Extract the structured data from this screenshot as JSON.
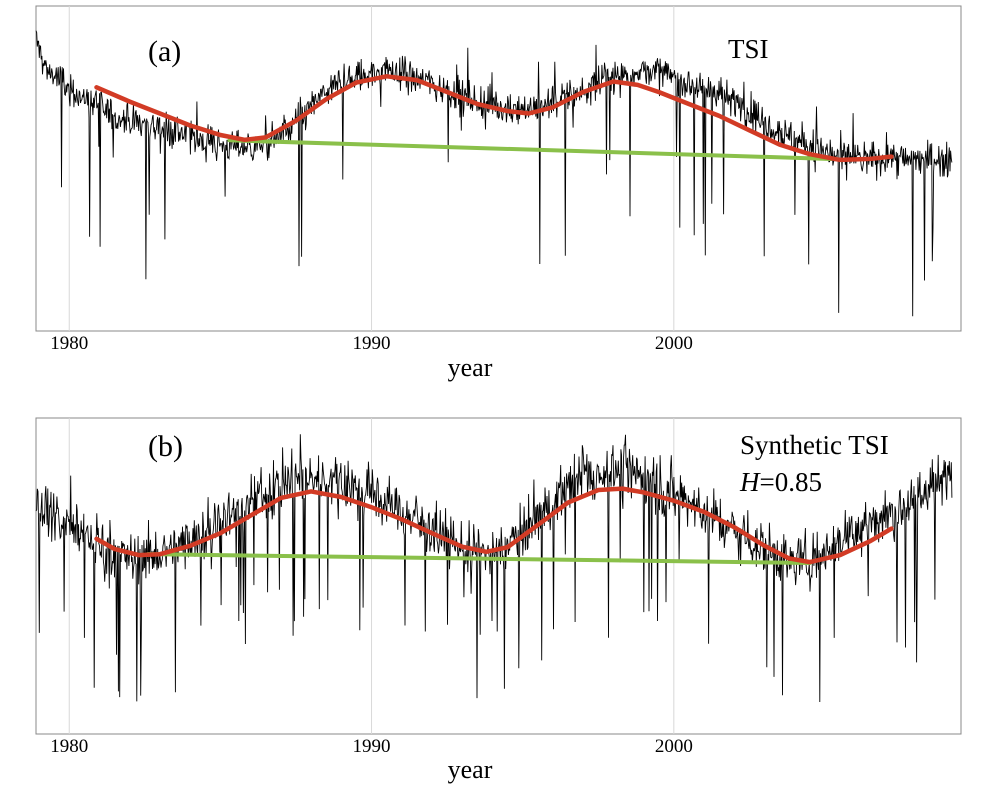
{
  "chart_data": [
    {
      "type": "line",
      "panel_label": "(a)",
      "annotation": "TSI",
      "annotation_param": "",
      "annotation_value": "",
      "xlabel": "year",
      "ylabel": "",
      "xlim": [
        1978.9,
        2009.5
      ],
      "ylim": [
        -4.2,
        2.6
      ],
      "xticks": [
        1980,
        1990,
        2000
      ],
      "xtick_labels": [
        "1980",
        "1990",
        "2000"
      ],
      "grid": "vertical",
      "colors": {
        "data": "#000000",
        "smooth": "#d23b25",
        "baseline": "#8ac04a"
      },
      "series": [
        {
          "values": [
            [
              1978.9,
              1.9
            ],
            [
              1979.2,
              1.3
            ],
            [
              1979.6,
              1.1
            ],
            [
              1980.0,
              0.85
            ],
            [
              1980.5,
              0.65
            ],
            [
              1981.0,
              0.5
            ],
            [
              1981.5,
              0.3
            ],
            [
              1982.0,
              0.2
            ],
            [
              1982.5,
              0.15
            ],
            [
              1983.0,
              0.05
            ],
            [
              1983.5,
              0.0
            ],
            [
              1984.0,
              -0.15
            ],
            [
              1984.5,
              -0.2
            ],
            [
              1985.0,
              -0.3
            ],
            [
              1985.5,
              -0.3
            ],
            [
              1986.0,
              -0.35
            ],
            [
              1986.5,
              -0.3
            ],
            [
              1987.0,
              -0.1
            ],
            [
              1987.5,
              0.15
            ],
            [
              1988.0,
              0.5
            ],
            [
              1988.5,
              0.8
            ],
            [
              1989.0,
              1.0
            ],
            [
              1989.5,
              1.1
            ],
            [
              1990.0,
              1.2
            ],
            [
              1990.5,
              1.25
            ],
            [
              1991.0,
              1.2
            ],
            [
              1991.5,
              1.1
            ],
            [
              1992.0,
              1.0
            ],
            [
              1992.5,
              0.85
            ],
            [
              1993.0,
              0.7
            ],
            [
              1993.5,
              0.6
            ],
            [
              1994.0,
              0.55
            ],
            [
              1994.5,
              0.45
            ],
            [
              1995.0,
              0.45
            ],
            [
              1995.5,
              0.5
            ],
            [
              1996.0,
              0.6
            ],
            [
              1996.5,
              0.7
            ],
            [
              1997.0,
              0.8
            ],
            [
              1997.5,
              1.0
            ],
            [
              1998.0,
              1.1
            ],
            [
              1998.5,
              1.2
            ],
            [
              1999.0,
              1.25
            ],
            [
              1999.5,
              1.2
            ],
            [
              2000.0,
              1.1
            ],
            [
              2000.5,
              1.0
            ],
            [
              2001.0,
              0.9
            ],
            [
              2001.5,
              0.75
            ],
            [
              2002.0,
              0.6
            ],
            [
              2002.5,
              0.4
            ],
            [
              2003.0,
              0.2
            ],
            [
              2003.5,
              0.0
            ],
            [
              2004.0,
              -0.2
            ],
            [
              2004.5,
              -0.3
            ],
            [
              2005.0,
              -0.45
            ],
            [
              2005.5,
              -0.55
            ],
            [
              2006.0,
              -0.6
            ],
            [
              2006.5,
              -0.6
            ],
            [
              2007.0,
              -0.55
            ],
            [
              2007.5,
              -0.6
            ],
            [
              2008.0,
              -0.6
            ],
            [
              2008.5,
              -0.6
            ],
            [
              2009.0,
              -0.6
            ],
            [
              2009.2,
              -0.55
            ]
          ]
        },
        {
          "values": [
            [
              1980.9,
              0.9
            ],
            [
              1982.0,
              0.6
            ],
            [
              1983.0,
              0.35
            ],
            [
              1984.0,
              0.1
            ],
            [
              1985.0,
              -0.1
            ],
            [
              1985.8,
              -0.2
            ],
            [
              1986.5,
              -0.15
            ],
            [
              1987.5,
              0.2
            ],
            [
              1988.5,
              0.65
            ],
            [
              1989.5,
              1.0
            ],
            [
              1990.5,
              1.13
            ],
            [
              1991.5,
              1.05
            ],
            [
              1992.5,
              0.8
            ],
            [
              1993.5,
              0.55
            ],
            [
              1994.5,
              0.4
            ],
            [
              1995.2,
              0.35
            ],
            [
              1996.0,
              0.48
            ],
            [
              1997.0,
              0.8
            ],
            [
              1998.0,
              1.02
            ],
            [
              1998.8,
              0.95
            ],
            [
              1999.5,
              0.8
            ],
            [
              2000.5,
              0.55
            ],
            [
              2001.5,
              0.3
            ],
            [
              2002.5,
              0.0
            ],
            [
              2003.5,
              -0.3
            ],
            [
              2004.5,
              -0.5
            ],
            [
              2005.5,
              -0.62
            ],
            [
              2006.5,
              -0.6
            ],
            [
              2007.2,
              -0.55
            ]
          ]
        },
        {
          "values": [
            [
              1985.3,
              -0.21
            ],
            [
              2005.2,
              -0.6
            ]
          ]
        }
      ]
    },
    {
      "type": "line",
      "panel_label": "(b)",
      "annotation": "Synthetic TSI",
      "annotation_param": "H",
      "annotation_value": "=0.85",
      "xlabel": "year",
      "ylabel": "",
      "xlim": [
        1978.9,
        2009.5
      ],
      "ylim": [
        -4.2,
        2.6
      ],
      "xticks": [
        1980,
        1990,
        2000
      ],
      "xtick_labels": [
        "1980",
        "1990",
        "2000"
      ],
      "grid": "vertical",
      "colors": {
        "data": "#000000",
        "smooth": "#d23b25",
        "baseline": "#8ac04a"
      },
      "series": [
        {
          "values": [
            [
              1978.9,
              0.9
            ],
            [
              1979.5,
              0.5
            ],
            [
              1980.0,
              0.3
            ],
            [
              1980.5,
              0.1
            ],
            [
              1981.0,
              -0.1
            ],
            [
              1981.5,
              -0.3
            ],
            [
              1982.0,
              -0.4
            ],
            [
              1982.5,
              -0.4
            ],
            [
              1983.0,
              -0.3
            ],
            [
              1983.5,
              -0.2
            ],
            [
              1984.0,
              0.0
            ],
            [
              1984.5,
              0.2
            ],
            [
              1985.0,
              0.4
            ],
            [
              1985.5,
              0.6
            ],
            [
              1986.0,
              0.8
            ],
            [
              1986.5,
              1.0
            ],
            [
              1987.0,
              1.2
            ],
            [
              1987.5,
              1.3
            ],
            [
              1988.0,
              1.3
            ],
            [
              1988.5,
              1.3
            ],
            [
              1989.0,
              1.2
            ],
            [
              1989.5,
              1.1
            ],
            [
              1990.0,
              1.0
            ],
            [
              1990.5,
              0.8
            ],
            [
              1991.0,
              0.6
            ],
            [
              1991.5,
              0.4
            ],
            [
              1992.0,
              0.2
            ],
            [
              1992.5,
              0.0
            ],
            [
              1993.0,
              -0.2
            ],
            [
              1993.5,
              -0.3
            ],
            [
              1994.0,
              -0.3
            ],
            [
              1994.5,
              -0.1
            ],
            [
              1995.0,
              0.2
            ],
            [
              1995.5,
              0.5
            ],
            [
              1996.0,
              0.8
            ],
            [
              1996.5,
              1.1
            ],
            [
              1997.0,
              1.3
            ],
            [
              1997.5,
              1.4
            ],
            [
              1998.0,
              1.5
            ],
            [
              1998.5,
              1.5
            ],
            [
              1999.0,
              1.4
            ],
            [
              1999.5,
              1.2
            ],
            [
              2000.0,
              1.0
            ],
            [
              2000.5,
              0.8
            ],
            [
              2001.0,
              0.6
            ],
            [
              2001.5,
              0.4
            ],
            [
              2002.0,
              0.2
            ],
            [
              2002.5,
              0.0
            ],
            [
              2003.0,
              -0.2
            ],
            [
              2003.5,
              -0.4
            ],
            [
              2004.0,
              -0.5
            ],
            [
              2004.5,
              -0.4
            ],
            [
              2005.0,
              -0.2
            ],
            [
              2005.5,
              0.0
            ],
            [
              2006.0,
              0.2
            ],
            [
              2006.5,
              0.3
            ],
            [
              2007.0,
              0.5
            ],
            [
              2007.5,
              0.7
            ],
            [
              2008.0,
              0.9
            ],
            [
              2008.5,
              1.1
            ],
            [
              2009.0,
              1.3
            ],
            [
              2009.2,
              1.4
            ]
          ]
        },
        {
          "values": [
            [
              1980.9,
              0.0
            ],
            [
              1981.5,
              -0.22
            ],
            [
              1982.3,
              -0.35
            ],
            [
              1983.0,
              -0.33
            ],
            [
              1984.0,
              -0.15
            ],
            [
              1985.0,
              0.12
            ],
            [
              1986.0,
              0.5
            ],
            [
              1987.0,
              0.88
            ],
            [
              1988.0,
              1.02
            ],
            [
              1989.0,
              0.9
            ],
            [
              1990.0,
              0.68
            ],
            [
              1991.0,
              0.42
            ],
            [
              1992.0,
              0.12
            ],
            [
              1993.0,
              -0.17
            ],
            [
              1993.8,
              -0.28
            ],
            [
              1994.5,
              -0.18
            ],
            [
              1995.5,
              0.3
            ],
            [
              1996.5,
              0.78
            ],
            [
              1997.5,
              1.05
            ],
            [
              1998.3,
              1.08
            ],
            [
              1999.0,
              1.0
            ],
            [
              2000.0,
              0.82
            ],
            [
              2001.0,
              0.58
            ],
            [
              2002.0,
              0.25
            ],
            [
              2003.0,
              -0.15
            ],
            [
              2003.8,
              -0.42
            ],
            [
              2004.5,
              -0.5
            ],
            [
              2005.5,
              -0.35
            ],
            [
              2006.5,
              -0.05
            ],
            [
              2007.2,
              0.22
            ]
          ]
        },
        {
          "values": [
            [
              1982.6,
              -0.33
            ],
            [
              2004.5,
              -0.52
            ]
          ]
        }
      ]
    }
  ]
}
